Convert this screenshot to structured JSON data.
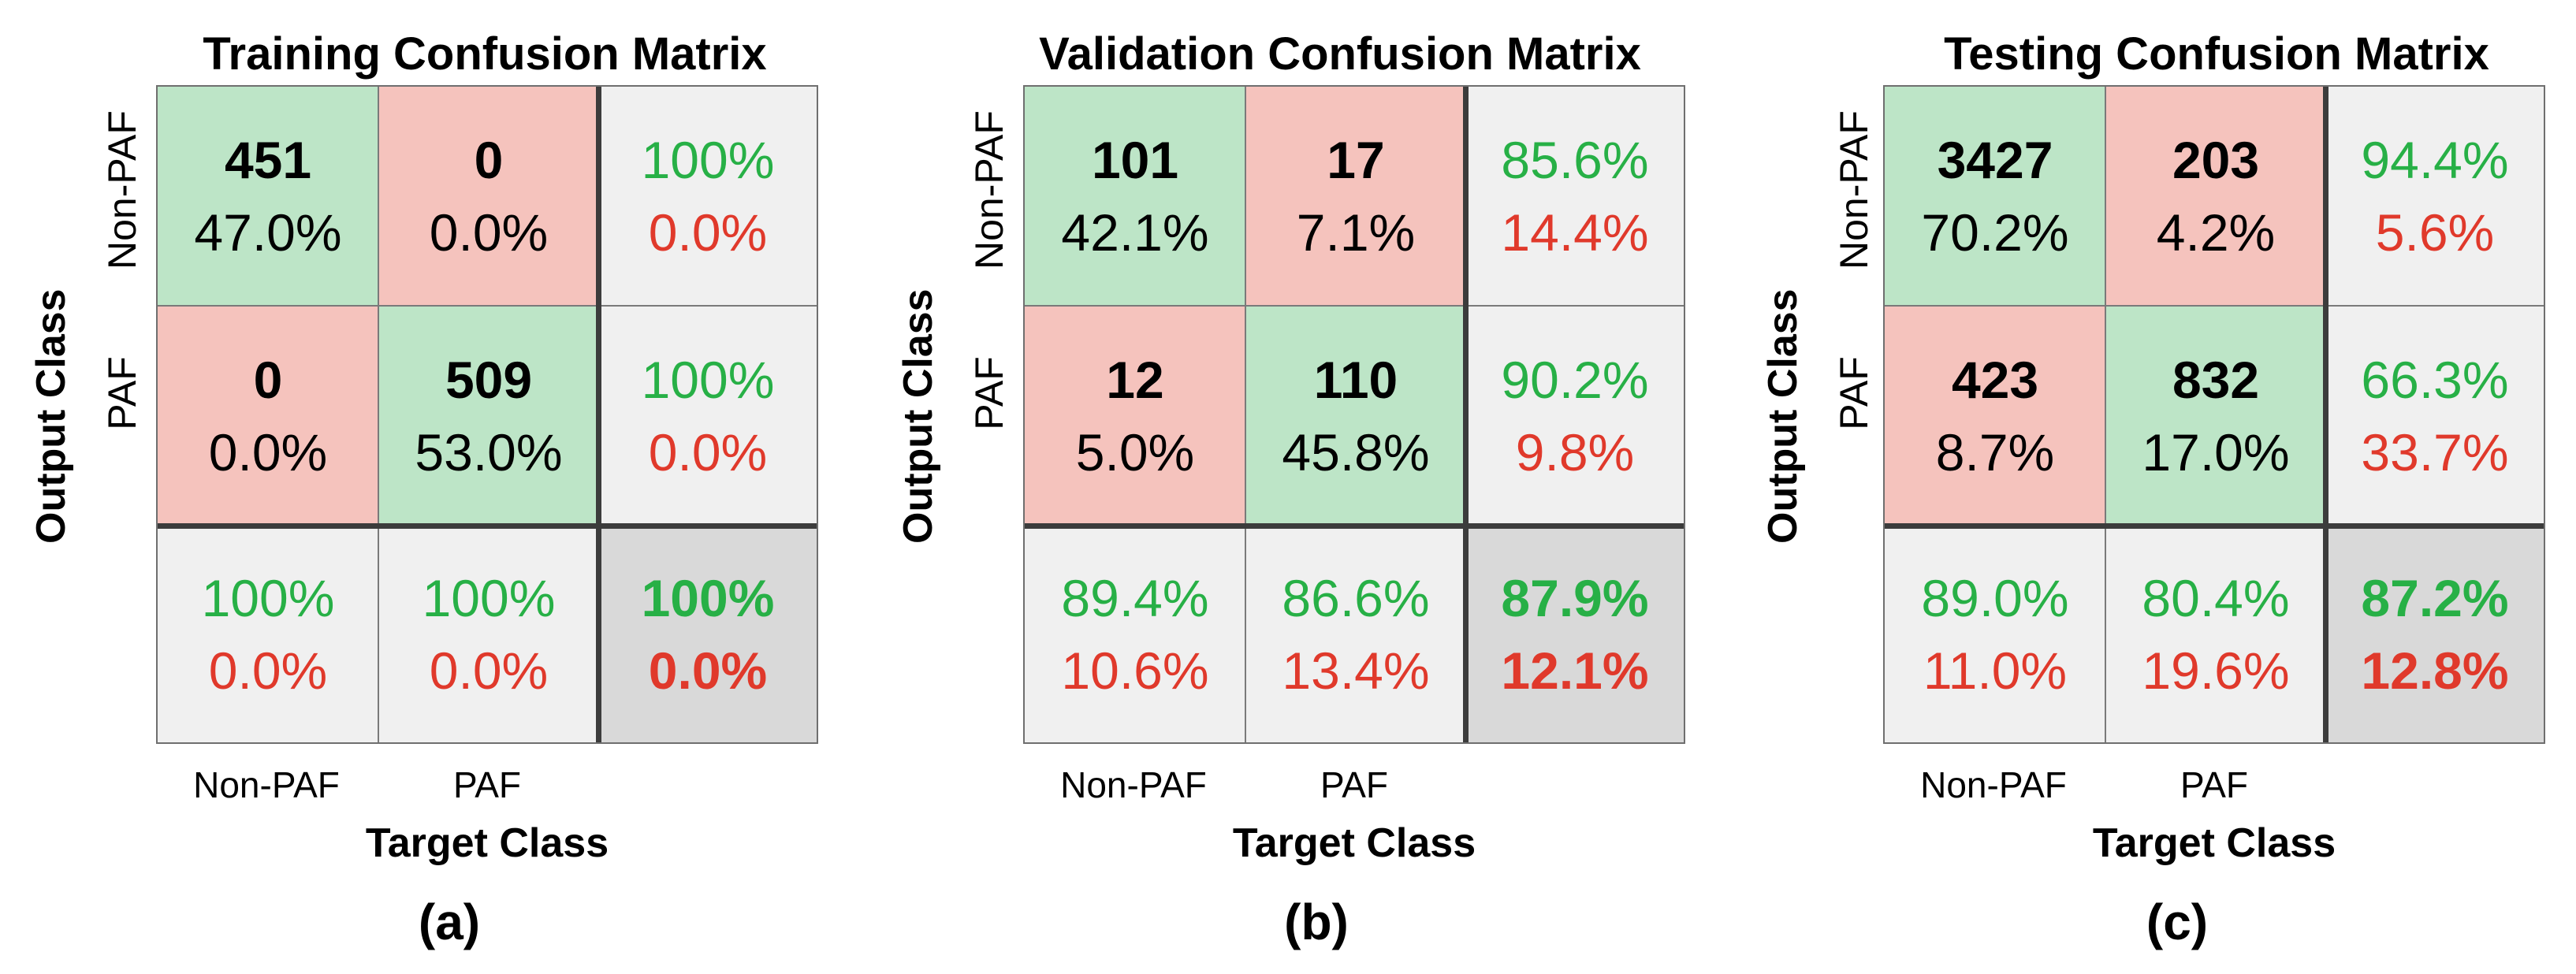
{
  "chart_data": [
    {
      "type": "table",
      "title": "Training Confusion Matrix",
      "panel_label": "(a)",
      "xlabel": "Target Class",
      "ylabel": "Output Class",
      "classes": [
        "Non-PAF",
        "PAF"
      ],
      "matrix": [
        [
          {
            "count": "451",
            "pct": "47.0%"
          },
          {
            "count": "0",
            "pct": "0.0%"
          }
        ],
        [
          {
            "count": "0",
            "pct": "0.0%"
          },
          {
            "count": "509",
            "pct": "53.0%"
          }
        ]
      ],
      "row_summary": [
        {
          "good": "100%",
          "bad": "0.0%"
        },
        {
          "good": "100%",
          "bad": "0.0%"
        }
      ],
      "col_summary": [
        {
          "good": "100%",
          "bad": "0.0%"
        },
        {
          "good": "100%",
          "bad": "0.0%"
        }
      ],
      "overall": {
        "good": "100%",
        "bad": "0.0%"
      }
    },
    {
      "type": "table",
      "title": "Validation Confusion Matrix",
      "panel_label": "(b)",
      "xlabel": "Target Class",
      "ylabel": "Output Class",
      "classes": [
        "Non-PAF",
        "PAF"
      ],
      "matrix": [
        [
          {
            "count": "101",
            "pct": "42.1%"
          },
          {
            "count": "17",
            "pct": "7.1%"
          }
        ],
        [
          {
            "count": "12",
            "pct": "5.0%"
          },
          {
            "count": "110",
            "pct": "45.8%"
          }
        ]
      ],
      "row_summary": [
        {
          "good": "85.6%",
          "bad": "14.4%"
        },
        {
          "good": "90.2%",
          "bad": "9.8%"
        }
      ],
      "col_summary": [
        {
          "good": "89.4%",
          "bad": "10.6%"
        },
        {
          "good": "86.6%",
          "bad": "13.4%"
        }
      ],
      "overall": {
        "good": "87.9%",
        "bad": "12.1%"
      }
    },
    {
      "type": "table",
      "title": "Testing Confusion Matrix",
      "panel_label": "(c)",
      "xlabel": "Target Class",
      "ylabel": "Output Class",
      "classes": [
        "Non-PAF",
        "PAF"
      ],
      "matrix": [
        [
          {
            "count": "3427",
            "pct": "70.2%"
          },
          {
            "count": "203",
            "pct": "4.2%"
          }
        ],
        [
          {
            "count": "423",
            "pct": "8.7%"
          },
          {
            "count": "832",
            "pct": "17.0%"
          }
        ]
      ],
      "row_summary": [
        {
          "good": "94.4%",
          "bad": "5.6%"
        },
        {
          "good": "66.3%",
          "bad": "33.7%"
        }
      ],
      "col_summary": [
        {
          "good": "89.0%",
          "bad": "11.0%"
        },
        {
          "good": "80.4%",
          "bad": "19.6%"
        }
      ],
      "overall": {
        "good": "87.2%",
        "bad": "12.8%"
      }
    }
  ],
  "colors": {
    "correct_cell": "#bde5c7",
    "wrong_cell": "#f5c3bd",
    "summary_cell": "#f0f0f0",
    "total_cell": "#d9d9d9",
    "good_text": "#27b046",
    "bad_text": "#e0392b"
  }
}
